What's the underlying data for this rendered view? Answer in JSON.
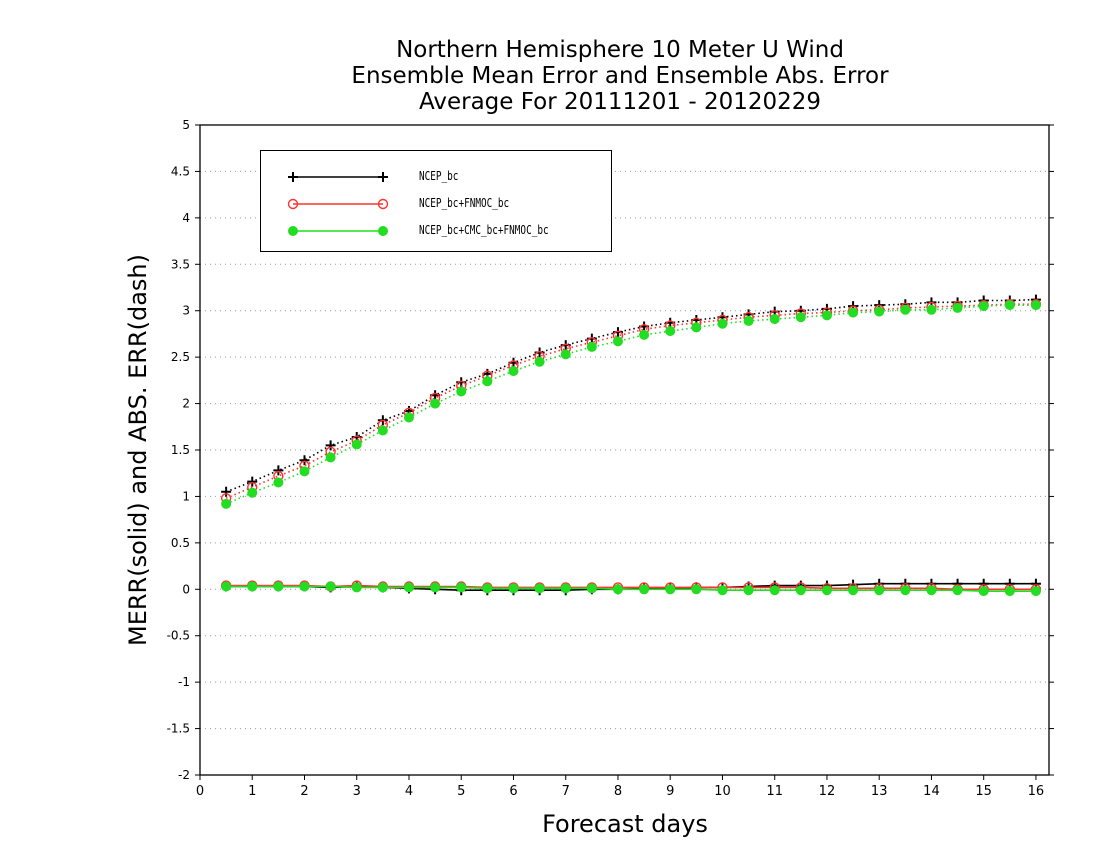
{
  "title": {
    "line1": "Northern Hemisphere 10 Meter U Wind",
    "line2": "Ensemble Mean Error and Ensemble Abs. Error",
    "line3": "Average For 20111201 - 20120229"
  },
  "chart_data": {
    "type": "line",
    "title": "Northern Hemisphere 10 Meter U Wind / Ensemble Mean Error and Ensemble Abs. Error / Average For 20111201 - 20120229",
    "xlabel": "Forecast days",
    "ylabel": "MERR(solid) and ABS. ERR(dash)",
    "xlim": [
      0,
      16.25
    ],
    "ylim": [
      -2,
      5
    ],
    "xticks": [
      0,
      1,
      2,
      3,
      4,
      5,
      6,
      7,
      8,
      9,
      10,
      11,
      12,
      13,
      14,
      15,
      16
    ],
    "yticks": [
      -2,
      -1.5,
      -1,
      -0.5,
      0,
      0.5,
      1,
      1.5,
      2,
      2.5,
      3,
      3.5,
      4,
      4.5,
      5
    ],
    "ytick_labels": [
      "-2",
      "-1.5",
      "-1",
      "-0.5",
      "0",
      "0.5",
      "1",
      "1.5",
      "2",
      "2.5",
      "3",
      "3.5",
      "4",
      "4.5",
      "5"
    ],
    "grid": true,
    "legend_position": "top-left",
    "x": [
      0.5,
      1,
      1.5,
      2,
      2.5,
      3,
      3.5,
      4,
      4.5,
      5,
      5.5,
      6,
      6.5,
      7,
      7.5,
      8,
      8.5,
      9,
      9.5,
      10,
      10.5,
      11,
      11.5,
      12,
      12.5,
      13,
      13.5,
      14,
      14.5,
      15,
      15.5,
      16
    ],
    "series": [
      {
        "name": "NCEP_bc",
        "color": "#000000",
        "marker": "plus",
        "abs_err": [
          1.05,
          1.16,
          1.28,
          1.39,
          1.55,
          1.64,
          1.82,
          1.92,
          2.09,
          2.23,
          2.32,
          2.44,
          2.55,
          2.63,
          2.7,
          2.77,
          2.83,
          2.87,
          2.9,
          2.93,
          2.96,
          2.99,
          3.0,
          3.02,
          3.05,
          3.06,
          3.07,
          3.09,
          3.09,
          3.11,
          3.11,
          3.12
        ],
        "mean_err": [
          0.03,
          0.03,
          0.03,
          0.03,
          0.02,
          0.03,
          0.02,
          0.01,
          0.0,
          -0.01,
          -0.01,
          -0.01,
          -0.01,
          -0.01,
          0.0,
          0.0,
          0.01,
          0.01,
          0.02,
          0.02,
          0.03,
          0.04,
          0.04,
          0.04,
          0.05,
          0.06,
          0.06,
          0.06,
          0.06,
          0.06,
          0.06,
          0.06
        ]
      },
      {
        "name": "NCEP_bc+FNMOC_bc",
        "color": "#ff3030",
        "marker": "open-circle",
        "abs_err": [
          0.98,
          1.1,
          1.22,
          1.33,
          1.48,
          1.6,
          1.77,
          1.9,
          2.06,
          2.19,
          2.3,
          2.41,
          2.51,
          2.59,
          2.66,
          2.73,
          2.8,
          2.84,
          2.87,
          2.9,
          2.93,
          2.95,
          2.97,
          2.98,
          3.0,
          3.01,
          3.03,
          3.04,
          3.05,
          3.06,
          3.07,
          3.07
        ],
        "mean_err": [
          0.04,
          0.04,
          0.04,
          0.04,
          0.03,
          0.04,
          0.03,
          0.03,
          0.03,
          0.03,
          0.02,
          0.02,
          0.02,
          0.02,
          0.02,
          0.02,
          0.02,
          0.02,
          0.02,
          0.02,
          0.02,
          0.02,
          0.02,
          0.01,
          0.01,
          0.01,
          0.01,
          0.01,
          0.0,
          0.0,
          0.0,
          0.0
        ]
      },
      {
        "name": "NCEP_bc+CMC_bc+FNMOC_bc",
        "color": "#22dd22",
        "marker": "filled-circle",
        "abs_err": [
          0.92,
          1.04,
          1.15,
          1.27,
          1.42,
          1.56,
          1.71,
          1.85,
          2.0,
          2.13,
          2.24,
          2.35,
          2.45,
          2.53,
          2.61,
          2.67,
          2.74,
          2.78,
          2.82,
          2.86,
          2.89,
          2.91,
          2.93,
          2.95,
          2.98,
          2.99,
          3.01,
          3.01,
          3.03,
          3.05,
          3.06,
          3.06
        ],
        "mean_err": [
          0.03,
          0.03,
          0.03,
          0.03,
          0.03,
          0.02,
          0.02,
          0.02,
          0.02,
          0.02,
          0.01,
          0.01,
          0.01,
          0.01,
          0.01,
          0.0,
          0.0,
          0.0,
          0.0,
          -0.01,
          -0.01,
          -0.01,
          -0.01,
          -0.01,
          -0.01,
          -0.01,
          -0.01,
          -0.01,
          -0.01,
          -0.02,
          -0.02,
          -0.02
        ]
      }
    ]
  }
}
